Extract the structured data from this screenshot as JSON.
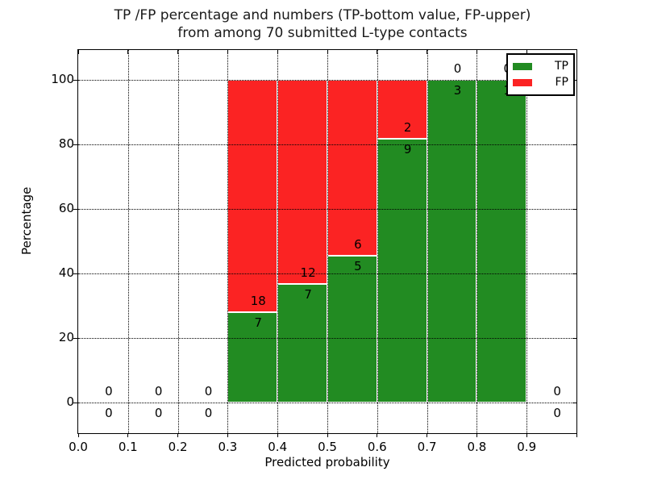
{
  "chart_data": {
    "type": "bar",
    "stacked": true,
    "title_line1": "TP /FP percentage and numbers (TP-bottom value, FP-upper)",
    "title_line2": "from among 70 submitted L-type contacts",
    "xlabel": "Predicted probability",
    "ylabel": "Percentage",
    "total_contacts": 70,
    "xlim": [
      0.0,
      1.0
    ],
    "ylim_percent": [
      -9.5,
      109.25
    ],
    "grid": "dotted",
    "x_tick_labels": [
      "0.0",
      "0.1",
      "0.2",
      "0.3",
      "0.4",
      "0.5",
      "0.6",
      "0.7",
      "0.8",
      "0.9"
    ],
    "y_tick_values": [
      0,
      20,
      40,
      60,
      80,
      100
    ],
    "colors": {
      "tp": "#228b22",
      "fp": "#fb2323"
    },
    "legend": {
      "position": "upper-right",
      "items": [
        {
          "label": "TP",
          "color": "#228b22"
        },
        {
          "label": "FP",
          "color": "#fb2323"
        }
      ]
    },
    "bins": [
      {
        "range": [
          0.0,
          0.1
        ],
        "tp": 0,
        "fp": 0,
        "tp_pct": 0
      },
      {
        "range": [
          0.1,
          0.2
        ],
        "tp": 0,
        "fp": 0,
        "tp_pct": 0
      },
      {
        "range": [
          0.2,
          0.3
        ],
        "tp": 0,
        "fp": 0,
        "tp_pct": 0
      },
      {
        "range": [
          0.3,
          0.4
        ],
        "tp": 7,
        "fp": 18,
        "tp_pct": 28.0
      },
      {
        "range": [
          0.4,
          0.5
        ],
        "tp": 7,
        "fp": 12,
        "tp_pct": 36.84
      },
      {
        "range": [
          0.5,
          0.6
        ],
        "tp": 5,
        "fp": 6,
        "tp_pct": 45.45
      },
      {
        "range": [
          0.6,
          0.7
        ],
        "tp": 9,
        "fp": 2,
        "tp_pct": 81.82
      },
      {
        "range": [
          0.7,
          0.8
        ],
        "tp": 3,
        "fp": 0,
        "tp_pct": 100.0
      },
      {
        "range": [
          0.8,
          0.9
        ],
        "tp": 1,
        "fp": 0,
        "tp_pct": 100.0
      },
      {
        "range": [
          0.9,
          1.0
        ],
        "tp": 0,
        "fp": 0,
        "tp_pct": 0
      }
    ]
  }
}
